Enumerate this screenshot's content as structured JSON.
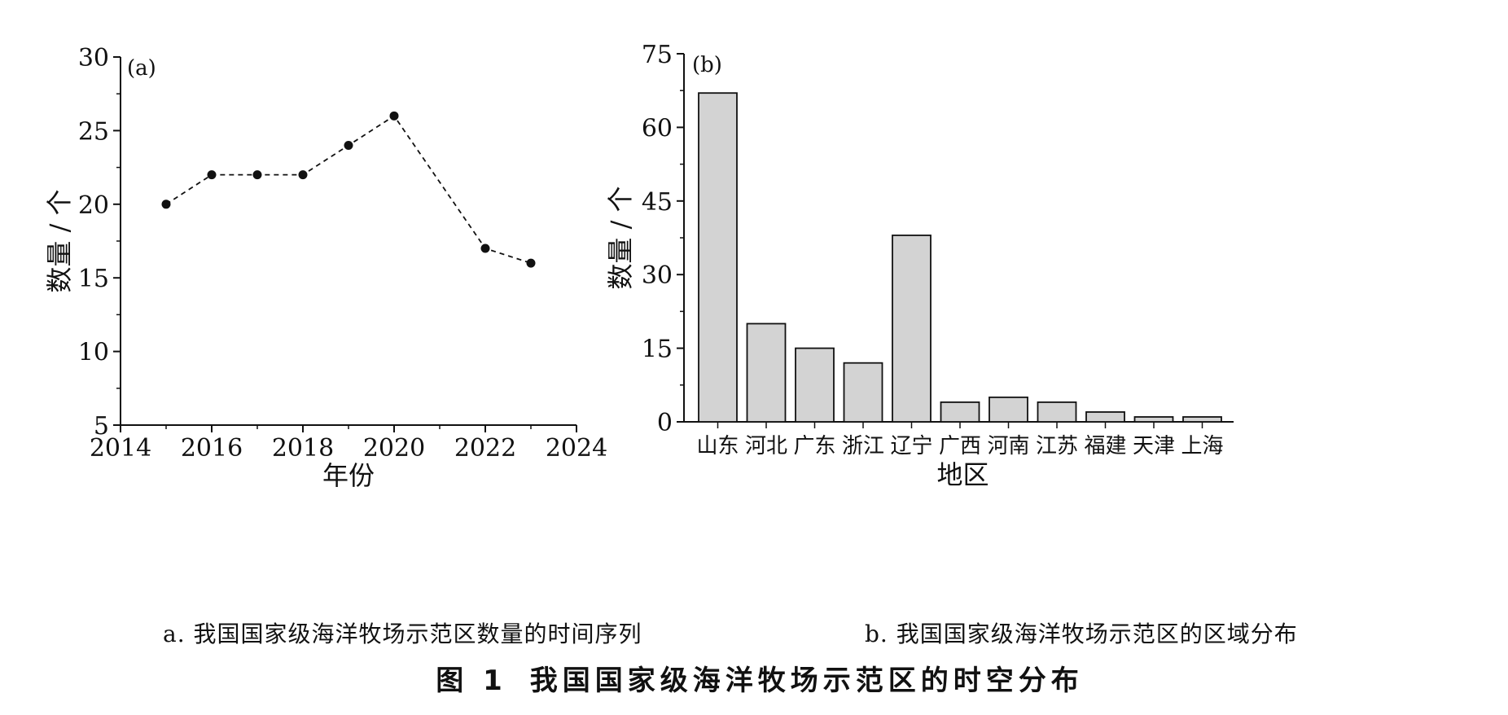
{
  "chart_data": [
    {
      "type": "line",
      "panel_label": "(a)",
      "x": [
        2015,
        2016,
        2017,
        2018,
        2019,
        2020,
        2022,
        2023
      ],
      "series": [
        {
          "values": [
            20,
            22,
            22,
            22,
            24,
            26,
            17,
            16
          ]
        }
      ],
      "xlim": [
        2014,
        2024
      ],
      "ylim": [
        5,
        30
      ],
      "xticks": [
        2014,
        2016,
        2018,
        2020,
        2022,
        2024
      ],
      "yticks": [
        5,
        10,
        15,
        20,
        25,
        30
      ],
      "xlabel": "年份",
      "ylabel": "数量 / 个",
      "grid": false,
      "line_style": "dashed",
      "marker": "filled-circle",
      "color": "#111111"
    },
    {
      "type": "bar",
      "panel_label": "(b)",
      "categories": [
        "山东",
        "河北",
        "广东",
        "浙江",
        "辽宁",
        "广西",
        "河南",
        "江苏",
        "福建",
        "天津",
        "上海"
      ],
      "values": [
        67,
        20,
        15,
        12,
        38,
        4,
        5,
        4,
        2,
        1,
        1
      ],
      "ylim": [
        0,
        75
      ],
      "yticks": [
        0,
        15,
        30,
        45,
        60,
        75
      ],
      "xlabel": "地区",
      "ylabel": "数量 / 个",
      "grid": false,
      "bar_color": "#d3d3d3",
      "edge_color": "#111111"
    }
  ],
  "captions": {
    "a": "a. 我国国家级海洋牧场示范区数量的时间序列",
    "b": "b. 我国国家级海洋牧场示范区的区域分布",
    "figure_number": "图 1",
    "figure_title": "我国国家级海洋牧场示范区的时空分布"
  }
}
